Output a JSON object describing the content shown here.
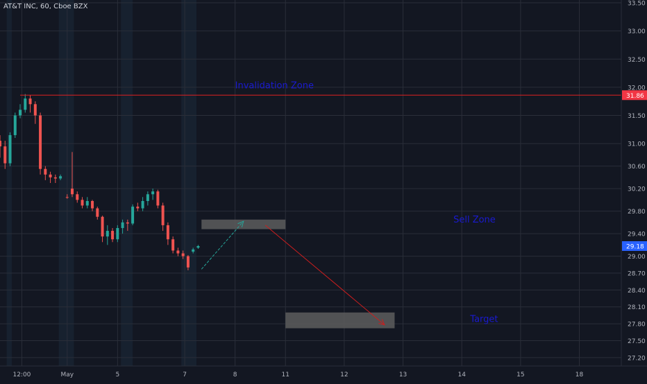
{
  "header": {
    "symbol_title": "AT&T INC, 60, Cboe BZX"
  },
  "colors": {
    "background": "#131722",
    "grid": "#2a2e39",
    "bull": "#26a69a",
    "bear": "#ef5350",
    "session_shade": "#1c2a3a",
    "axis_text": "#b2b5be",
    "zone": "#5d5d5d",
    "annotation_text": "#1a1ad0",
    "invalidation_line": "#e02020",
    "arrow_up": "#26a69a",
    "arrow_down": "#cc1e1e",
    "last_price_bg": "#2962ff"
  },
  "chart_data": {
    "type": "candlestick",
    "y_axis": {
      "range": [
        27.05,
        33.55
      ],
      "ticks": [
        "33.50",
        "33.00",
        "32.50",
        "32.00",
        "31.50",
        "31.00",
        "30.60",
        "30.20",
        "29.80",
        "29.40",
        "29.00",
        "28.70",
        "28.40",
        "28.10",
        "27.80",
        "27.50",
        "27.20"
      ]
    },
    "x_axis": {
      "ticks": [
        {
          "label": "12:00",
          "x": 1.3
        },
        {
          "label": "May",
          "x": 4.0
        },
        {
          "label": "5",
          "x": 7.0
        },
        {
          "label": "7",
          "x": 11.0
        },
        {
          "label": "8",
          "x": 14.0
        },
        {
          "label": "11",
          "x": 17.0
        },
        {
          "label": "12",
          "x": 20.5
        },
        {
          "label": "13",
          "x": 24.0
        },
        {
          "label": "14",
          "x": 27.5
        },
        {
          "label": "15",
          "x": 31.0
        },
        {
          "label": "18",
          "x": 34.5
        }
      ],
      "range": [
        0,
        37
      ]
    },
    "session_shades": [
      [
        0.4,
        0.7
      ],
      [
        3.5,
        4.4
      ],
      [
        7.2,
        7.9
      ],
      [
        10.8,
        11.7
      ]
    ],
    "candles": [
      {
        "x": 0.0,
        "o": 31.05,
        "h": 31.15,
        "l": 30.75,
        "c": 30.95
      },
      {
        "x": 0.3,
        "o": 30.95,
        "h": 31.05,
        "l": 30.55,
        "c": 30.65
      },
      {
        "x": 0.6,
        "o": 30.65,
        "h": 31.2,
        "l": 30.6,
        "c": 31.15
      },
      {
        "x": 0.9,
        "o": 31.15,
        "h": 31.55,
        "l": 31.1,
        "c": 31.5
      },
      {
        "x": 1.2,
        "o": 31.5,
        "h": 31.7,
        "l": 31.45,
        "c": 31.6
      },
      {
        "x": 1.5,
        "o": 31.6,
        "h": 31.88,
        "l": 31.55,
        "c": 31.8
      },
      {
        "x": 1.8,
        "o": 31.8,
        "h": 31.86,
        "l": 31.55,
        "c": 31.7
      },
      {
        "x": 2.1,
        "o": 31.7,
        "h": 31.75,
        "l": 31.35,
        "c": 31.5
      },
      {
        "x": 2.4,
        "o": 31.5,
        "h": 31.55,
        "l": 30.45,
        "c": 30.55
      },
      {
        "x": 2.7,
        "o": 30.55,
        "h": 30.6,
        "l": 30.35,
        "c": 30.45
      },
      {
        "x": 3.0,
        "o": 30.45,
        "h": 30.5,
        "l": 30.3,
        "c": 30.4
      },
      {
        "x": 3.3,
        "o": 30.4,
        "h": 30.45,
        "l": 30.3,
        "c": 30.38
      },
      {
        "x": 3.6,
        "o": 30.38,
        "h": 30.45,
        "l": 30.35,
        "c": 30.42
      },
      {
        "x": 4.0,
        "o": 30.05,
        "h": 30.1,
        "l": 30.02,
        "c": 30.04
      },
      {
        "x": 4.3,
        "o": 30.2,
        "h": 30.85,
        "l": 30.05,
        "c": 30.1
      },
      {
        "x": 4.6,
        "o": 30.1,
        "h": 30.15,
        "l": 29.95,
        "c": 30.0
      },
      {
        "x": 4.9,
        "o": 30.0,
        "h": 30.05,
        "l": 29.85,
        "c": 29.9
      },
      {
        "x": 5.2,
        "o": 29.9,
        "h": 30.05,
        "l": 29.85,
        "c": 29.98
      },
      {
        "x": 5.5,
        "o": 29.98,
        "h": 30.0,
        "l": 29.8,
        "c": 29.85
      },
      {
        "x": 5.8,
        "o": 29.85,
        "h": 29.88,
        "l": 29.65,
        "c": 29.7
      },
      {
        "x": 6.1,
        "o": 29.7,
        "h": 29.72,
        "l": 29.25,
        "c": 29.35
      },
      {
        "x": 6.4,
        "o": 29.35,
        "h": 29.55,
        "l": 29.2,
        "c": 29.45
      },
      {
        "x": 6.7,
        "o": 29.45,
        "h": 29.5,
        "l": 29.25,
        "c": 29.3
      },
      {
        "x": 7.0,
        "o": 29.3,
        "h": 29.55,
        "l": 29.25,
        "c": 29.5
      },
      {
        "x": 7.3,
        "o": 29.5,
        "h": 29.65,
        "l": 29.4,
        "c": 29.6
      },
      {
        "x": 7.6,
        "o": 29.6,
        "h": 29.65,
        "l": 29.45,
        "c": 29.58
      },
      {
        "x": 7.9,
        "o": 29.58,
        "h": 29.92,
        "l": 29.55,
        "c": 29.88
      },
      {
        "x": 8.2,
        "o": 29.88,
        "h": 29.95,
        "l": 29.8,
        "c": 29.85
      },
      {
        "x": 8.5,
        "o": 29.85,
        "h": 30.05,
        "l": 29.8,
        "c": 29.98
      },
      {
        "x": 8.8,
        "o": 29.98,
        "h": 30.15,
        "l": 29.9,
        "c": 30.1
      },
      {
        "x": 9.1,
        "o": 30.1,
        "h": 30.2,
        "l": 30.0,
        "c": 30.15
      },
      {
        "x": 9.4,
        "o": 30.15,
        "h": 30.18,
        "l": 29.85,
        "c": 29.9
      },
      {
        "x": 9.7,
        "o": 29.9,
        "h": 29.95,
        "l": 29.45,
        "c": 29.55
      },
      {
        "x": 10.0,
        "o": 29.55,
        "h": 29.6,
        "l": 29.2,
        "c": 29.3
      },
      {
        "x": 10.3,
        "o": 29.3,
        "h": 29.35,
        "l": 29.05,
        "c": 29.1
      },
      {
        "x": 10.6,
        "o": 29.1,
        "h": 29.15,
        "l": 29.0,
        "c": 29.05
      },
      {
        "x": 10.9,
        "o": 29.05,
        "h": 29.1,
        "l": 28.95,
        "c": 29.0
      },
      {
        "x": 11.2,
        "o": 29.0,
        "h": 29.02,
        "l": 28.75,
        "c": 28.8
      },
      {
        "x": 11.5,
        "o": 29.08,
        "h": 29.15,
        "l": 29.05,
        "c": 29.12
      },
      {
        "x": 11.8,
        "o": 29.15,
        "h": 29.2,
        "l": 29.13,
        "c": 29.18
      }
    ],
    "invalidation_level": 31.86,
    "last_price": 29.18,
    "price_labels": [
      {
        "value": "31.86",
        "price": 31.86,
        "color": "#f23645"
      },
      {
        "value": "29.18",
        "price": 29.18,
        "color": "#2962ff"
      }
    ],
    "zones": [
      {
        "x0": 12.0,
        "x1": 17.0,
        "y0": 29.48,
        "y1": 29.65
      },
      {
        "x0": 17.0,
        "x1": 23.5,
        "y0": 27.72,
        "y1": 28.0
      }
    ],
    "arrows": [
      {
        "from": [
          12.0,
          28.77
        ],
        "to": [
          14.5,
          29.62
        ],
        "color": "#26a69a"
      },
      {
        "from": [
          15.8,
          29.55
        ],
        "to": [
          22.9,
          27.78
        ],
        "color": "#cc1e1e"
      }
    ],
    "annotations": [
      {
        "text": "Invalidation Zone",
        "x": 14.0,
        "y": 31.98
      },
      {
        "text": "Sell Zone",
        "x": 27.0,
        "y": 29.6
      },
      {
        "text": "Target",
        "x": 28.0,
        "y": 27.83
      }
    ]
  }
}
